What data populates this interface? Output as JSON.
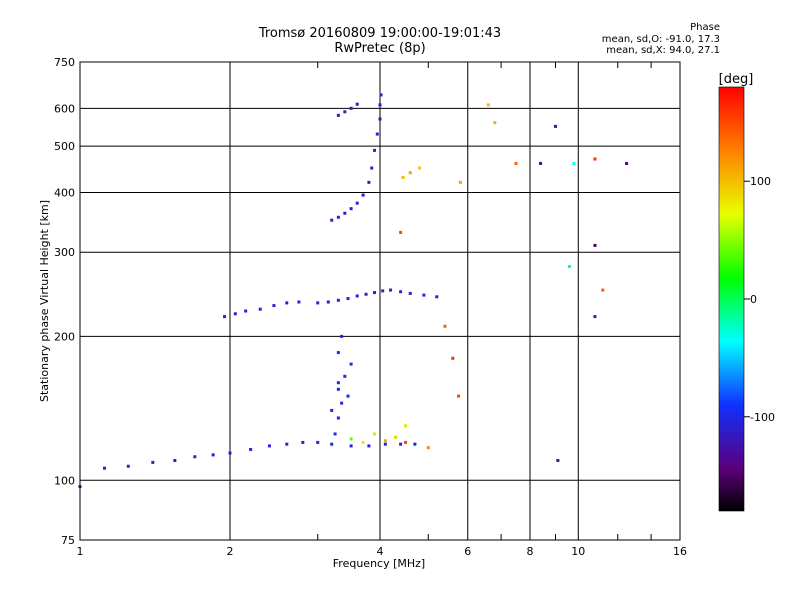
{
  "chart_data": {
    "type": "scatter",
    "title": "Tromsø 20160809 19:00:00-19:01:43",
    "subtitle": "RwPretec (8p)",
    "xlabel": "Frequency [MHz]",
    "ylabel": "Stationary phase Virtual Height [km]",
    "x_scale": "log",
    "y_scale": "log",
    "xlim": [
      1,
      16
    ],
    "ylim": [
      75,
      750
    ],
    "x_ticks": [
      1,
      2,
      4,
      6,
      8,
      10,
      16
    ],
    "x_tick_labels": [
      "1",
      "2",
      "4",
      "6",
      "8",
      "10",
      "16"
    ],
    "y_ticks": [
      75,
      100,
      200,
      300,
      400,
      500,
      600,
      750
    ],
    "y_tick_labels": [
      "75",
      "100",
      "200",
      "300",
      "400",
      "500",
      "600",
      "750"
    ],
    "grid": true,
    "phase_stats": {
      "heading": "Phase",
      "o_line": "mean, sd,O: -91.0, 17.3",
      "x_line": "mean, sd,X:  94.0, 27.1"
    },
    "colorbar": {
      "label": "[deg]",
      "range": [
        -180,
        180
      ],
      "ticks": [
        100,
        0,
        -100
      ],
      "tick_labels": [
        "100",
        "0",
        "-100"
      ]
    },
    "trace_groups": [
      {
        "freq": [
          1.0,
          1.12,
          1.25,
          1.4,
          1.55,
          1.7,
          1.85,
          2.0,
          2.2,
          2.4,
          2.6,
          2.8,
          3.0,
          3.2,
          3.5,
          3.8,
          4.1,
          4.4,
          4.7
        ],
        "height": [
          97,
          106,
          107,
          109,
          110,
          112,
          113,
          114,
          116,
          118,
          119,
          120,
          120,
          119,
          118,
          118,
          119,
          119,
          119
        ],
        "phase": -105
      },
      {
        "freq": [
          1.95,
          2.05,
          2.15,
          2.3,
          2.45,
          2.6,
          2.75
        ],
        "height": [
          220,
          223,
          226,
          228,
          232,
          235,
          236
        ],
        "phase": -110
      },
      {
        "freq": [
          3.0,
          3.15,
          3.3,
          3.45,
          3.6,
          3.75,
          3.9,
          4.05,
          4.2,
          4.4,
          4.6,
          4.9,
          5.2
        ],
        "height": [
          235,
          236,
          238,
          240,
          243,
          245,
          247,
          249,
          250,
          248,
          246,
          244,
          242
        ],
        "phase": -108
      },
      {
        "freq": [
          3.2,
          3.3,
          3.4,
          3.5,
          3.6,
          3.7,
          3.8,
          3.85,
          3.9,
          3.95,
          4.0,
          4.0,
          4.02
        ],
        "height": [
          350,
          355,
          362,
          370,
          380,
          395,
          420,
          450,
          490,
          530,
          570,
          610,
          640
        ],
        "phase": -112
      },
      {
        "freq": [
          3.3,
          3.4,
          3.5,
          3.6
        ],
        "height": [
          580,
          590,
          600,
          612
        ],
        "phase": -115
      },
      {
        "freq": [
          3.25,
          3.3,
          3.35,
          3.3,
          3.4,
          3.5,
          3.2,
          3.3,
          3.45,
          3.3,
          3.35
        ],
        "height": [
          125,
          135,
          145,
          155,
          165,
          175,
          140,
          160,
          150,
          185,
          200
        ],
        "phase": -100
      }
    ],
    "scatter_points": {
      "freq": [
        3.5,
        3.7,
        3.9,
        4.1,
        4.3,
        4.5,
        4.45,
        4.6,
        4.8,
        5.0,
        5.4,
        5.6,
        5.75,
        6.6,
        7.5,
        8.4,
        9.0,
        9.8,
        10.8,
        12.5,
        10.8,
        9.6,
        10.8,
        9.1,
        4.4,
        4.5,
        5.8,
        6.8,
        11.2
      ],
      "height": [
        122,
        120,
        125,
        121,
        123,
        120,
        430,
        440,
        450,
        117,
        210,
        180,
        150,
        610,
        460,
        460,
        550,
        460,
        470,
        460,
        310,
        280,
        220,
        110,
        330,
        130,
        420,
        560,
        250
      ],
      "phase": [
        40,
        80,
        60,
        110,
        90,
        150,
        100,
        110,
        95,
        120,
        140,
        160,
        150,
        100,
        140,
        -130,
        -120,
        -30,
        160,
        -140,
        -150,
        -20,
        -110,
        -120,
        150,
        60,
        110,
        105,
        140
      ]
    }
  }
}
